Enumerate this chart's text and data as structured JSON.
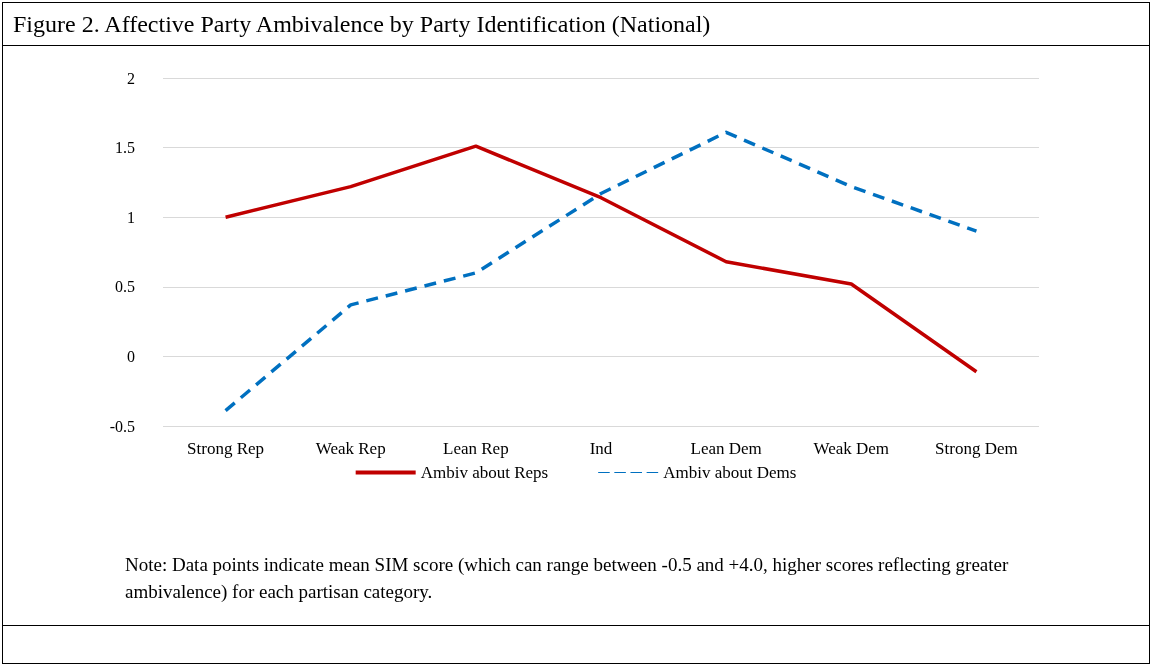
{
  "chart_data": {
    "type": "line",
    "title": "Figure 2. Affective Party Ambivalence by Party Identification (National)",
    "categories": [
      "Strong Rep",
      "Weak Rep",
      "Lean Rep",
      "Ind",
      "Lean Dem",
      "Weak Dem",
      "Strong Dem"
    ],
    "series": [
      {
        "name": "Ambiv about Reps",
        "color": "#c00000",
        "line_style": "solid",
        "values": [
          1.0,
          1.22,
          1.51,
          1.14,
          0.68,
          0.52,
          -0.11
        ]
      },
      {
        "name": "Ambiv about Dems",
        "color": "#0070c0",
        "line_style": "dashed",
        "values": [
          -0.39,
          0.37,
          0.6,
          1.17,
          1.61,
          1.22,
          0.9
        ]
      }
    ],
    "ylim": [
      -0.5,
      2
    ],
    "yticks": [
      -0.5,
      0,
      0.5,
      1,
      1.5,
      2
    ],
    "grid": "y",
    "legend": "bottom",
    "marker": "none",
    "annotations": [
      "Note: Data points indicate mean SIM score (which can range between -0.5 and +4.0, higher scores reflecting greater ambivalence) for each partisan category."
    ]
  }
}
